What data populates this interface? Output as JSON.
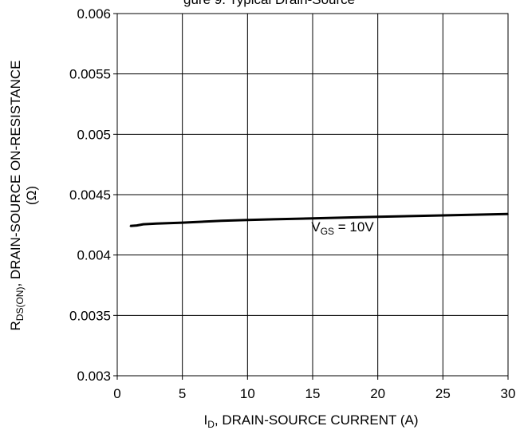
{
  "chart_data": {
    "type": "line",
    "title_fragment": "gure 9. Typical Drain-Source",
    "xlabel": {
      "main": "I",
      "sub": "D",
      "rest": ", DRAIN-SOURCE CURRENT (A)"
    },
    "ylabel": {
      "main": "R",
      "sub": "DS(ON)",
      "rest": ", DRAIN-SOURCE ON-RESISTANCE",
      "line2": "(Ω)"
    },
    "xlim": [
      0,
      30
    ],
    "ylim": [
      0.003,
      0.006
    ],
    "x_ticks": [
      0,
      5,
      10,
      15,
      20,
      25,
      30
    ],
    "x_tick_labels": [
      "0",
      "5",
      "10",
      "15",
      "20",
      "25",
      "30"
    ],
    "y_ticks": [
      0.003,
      0.0035,
      0.004,
      0.0045,
      0.005,
      0.0055,
      0.006
    ],
    "y_tick_labels": [
      "0.003",
      "0.0035",
      "0.004",
      "0.0045",
      "0.005",
      "0.0055",
      "0.006"
    ],
    "grid": true,
    "series": [
      {
        "annotation": {
          "main": "V",
          "sub": "GS",
          "rest": " = 10V",
          "x": 14.9,
          "y": 0.00413
        },
        "color": "#000000",
        "x": [
          1,
          1.5,
          2,
          3,
          5,
          8,
          10,
          12,
          15,
          18,
          20,
          25,
          30
        ],
        "y": [
          0.00424,
          0.004245,
          0.004255,
          0.00426,
          0.004268,
          0.004283,
          0.00429,
          0.004296,
          0.004304,
          0.004312,
          0.004317,
          0.004328,
          0.00434
        ]
      }
    ]
  }
}
